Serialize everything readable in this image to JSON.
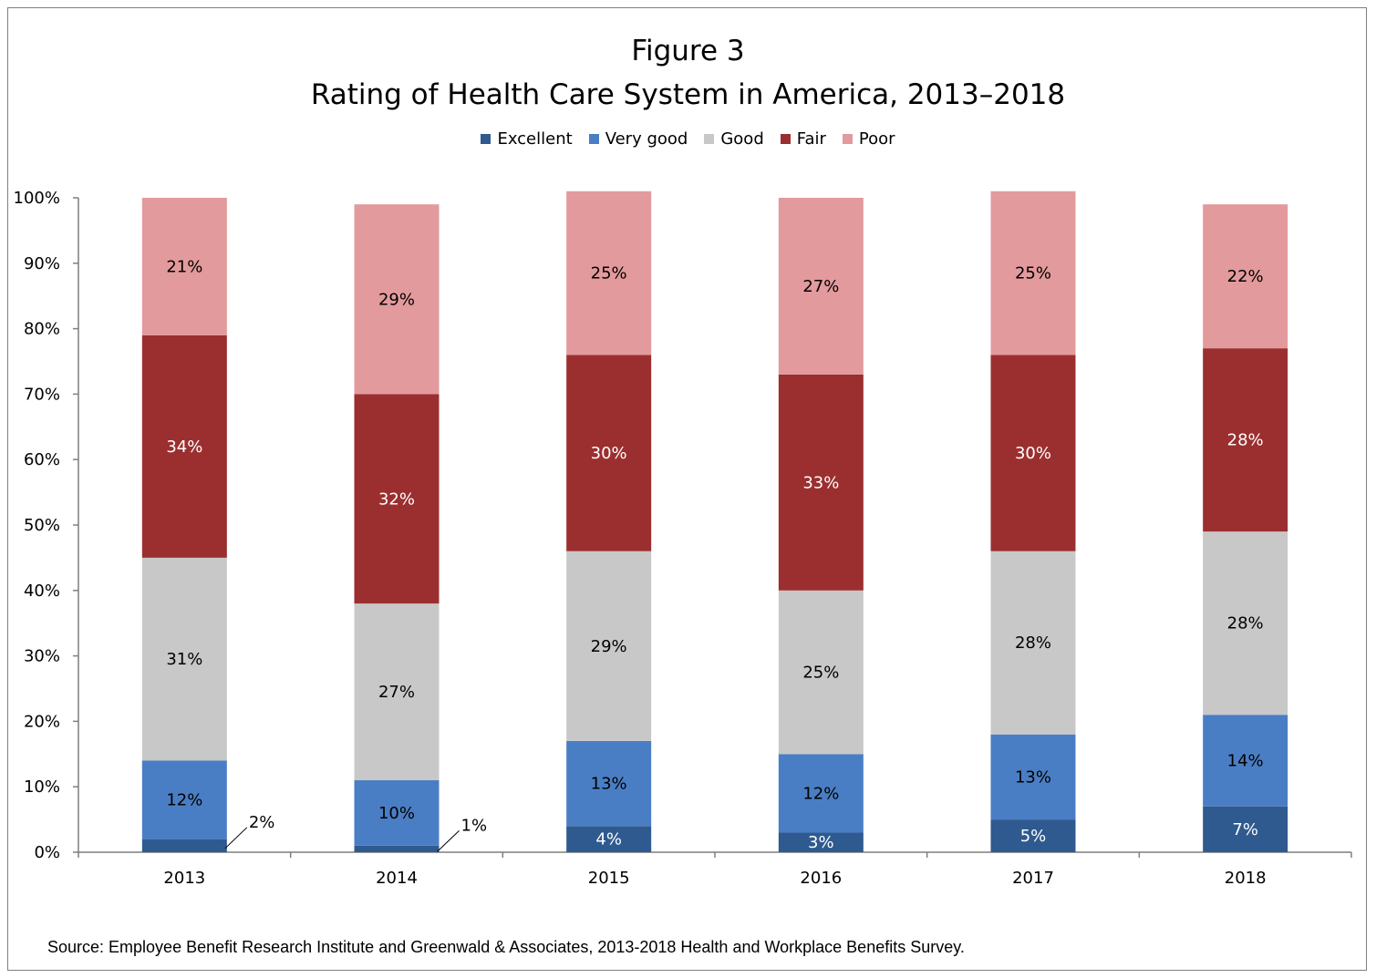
{
  "chart_data": {
    "type": "bar",
    "stacked": true,
    "title": "Figure 3",
    "subtitle": "Rating of Health Care System in America, 2013–2018",
    "categories": [
      "2013",
      "2014",
      "2015",
      "2016",
      "2017",
      "2018"
    ],
    "series": [
      {
        "name": "Excellent",
        "color": "#2f5a8f",
        "values": [
          2,
          1,
          4,
          3,
          5,
          7
        ],
        "labels": [
          "2%",
          "1%",
          "4%",
          "3%",
          "5%",
          "7%"
        ]
      },
      {
        "name": "Very good",
        "color": "#4a7ec4",
        "values": [
          12,
          10,
          13,
          12,
          13,
          14
        ],
        "labels": [
          "12%",
          "10%",
          "13%",
          "12%",
          "13%",
          "14%"
        ]
      },
      {
        "name": "Good",
        "color": "#c8c8c8",
        "values": [
          31,
          27,
          29,
          25,
          28,
          28
        ],
        "labels": [
          "31%",
          "27%",
          "29%",
          "25%",
          "28%",
          "28%"
        ]
      },
      {
        "name": "Fair",
        "color": "#9b2f2f",
        "values": [
          34,
          32,
          30,
          33,
          30,
          28
        ],
        "labels": [
          "34%",
          "32%",
          "30%",
          "33%",
          "30%",
          "28%"
        ]
      },
      {
        "name": "Poor",
        "color": "#e39a9c",
        "values": [
          21,
          29,
          25,
          27,
          25,
          22
        ],
        "labels": [
          "21%",
          "29%",
          "25%",
          "27%",
          "25%",
          "22%"
        ]
      }
    ],
    "ylim": [
      0,
      100
    ],
    "yticks": [
      "0%",
      "10%",
      "20%",
      "30%",
      "40%",
      "50%",
      "60%",
      "70%",
      "80%",
      "90%",
      "100%"
    ],
    "legend_position": "top",
    "grid": false
  },
  "source": "Source: Employee Benefit Research Institute and Greenwald & Associates, 2013-2018 Health and Workplace Benefits Survey."
}
